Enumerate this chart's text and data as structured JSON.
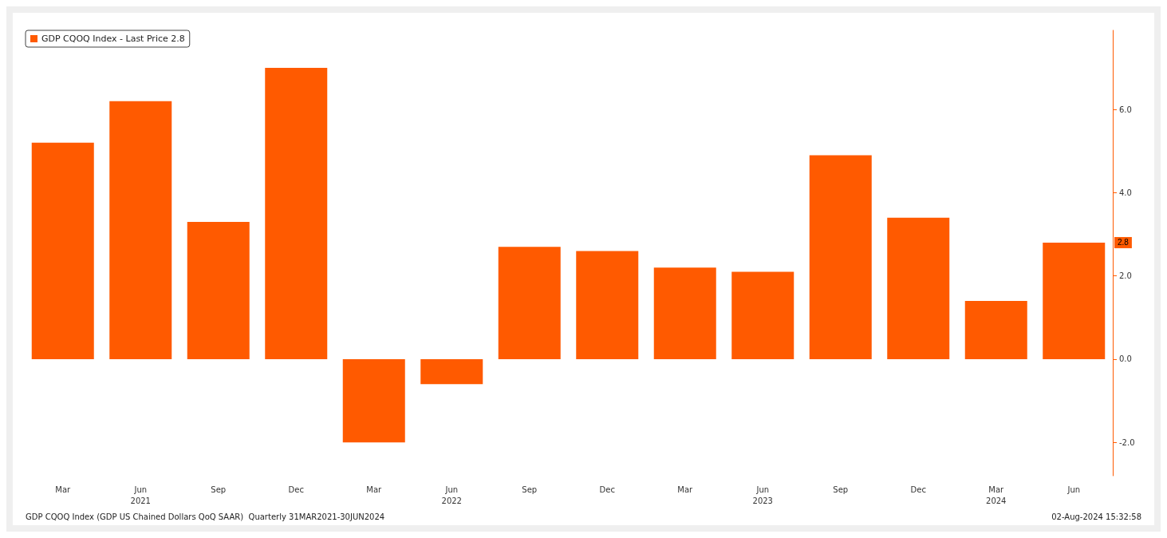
{
  "chart_data": {
    "type": "bar",
    "categories": [
      "Mar",
      "Jun\n2021",
      "Sep",
      "Dec",
      "Mar",
      "Jun\n2022",
      "Sep",
      "Dec",
      "Mar",
      "Jun\n2023",
      "Sep",
      "Dec",
      "Mar\n2024",
      "Jun"
    ],
    "series": [
      {
        "name": "GDP CQOQ Index - Last Price 2.8",
        "color": "#ff5a00",
        "values": [
          5.2,
          6.2,
          3.3,
          7.0,
          -2.0,
          -0.6,
          2.7,
          2.6,
          2.2,
          2.1,
          4.9,
          3.4,
          1.4,
          2.8
        ]
      }
    ],
    "ylim": [
      -2.8,
      7.9
    ],
    "yticks": [
      {
        "value": -2,
        "label": "-2.0"
      },
      {
        "value": 0,
        "label": "0.0"
      },
      {
        "value": 2,
        "label": "2.0"
      },
      {
        "value": 4,
        "label": "4.0"
      },
      {
        "value": 6,
        "label": "6.0"
      }
    ],
    "annotations": [
      {
        "text": "2.8",
        "y": 2.8
      },
      "GDP CQOQ Index (GDP US Chained Dollars QoQ SAAR)  Quarterly 31MAR2021-30JUN2024",
      "02-Aug-2024 15:32:58"
    ],
    "grid": false,
    "legend": "top left"
  }
}
